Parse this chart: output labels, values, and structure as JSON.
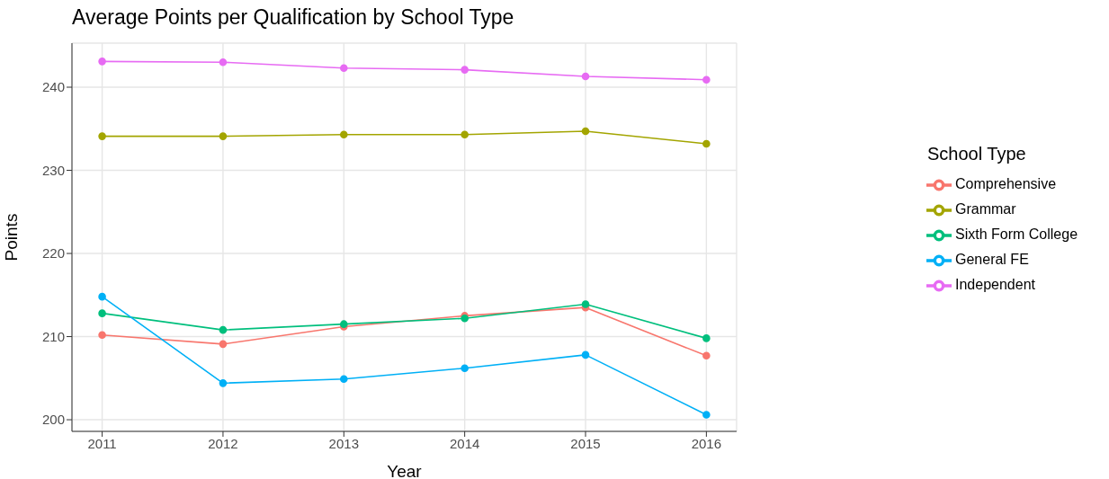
{
  "chart_data": {
    "type": "line",
    "title": "Average Points per Qualification by School Type",
    "xlabel": "Year",
    "ylabel": "Points",
    "legend_title": "School Type",
    "x": [
      2011,
      2012,
      2013,
      2014,
      2015,
      2016
    ],
    "xlim": [
      2010.75,
      2016.25
    ],
    "xticks": [
      2011,
      2012,
      2013,
      2014,
      2015,
      2016
    ],
    "ylim": [
      198.6,
      245.3
    ],
    "yticks": [
      200,
      210,
      220,
      230,
      240
    ],
    "grid": true,
    "legend": "right",
    "marker": "circle",
    "series": [
      {
        "name": "Comprehensive",
        "color": "#f8766d",
        "values": [
          210.2,
          209.1,
          211.2,
          212.5,
          213.5,
          207.7
        ]
      },
      {
        "name": "Grammar",
        "color": "#a3a500",
        "values": [
          234.1,
          234.1,
          234.3,
          234.3,
          234.7,
          233.2
        ]
      },
      {
        "name": "Sixth Form College",
        "color": "#00bf7d",
        "values": [
          212.8,
          210.8,
          211.5,
          212.2,
          213.9,
          209.8
        ]
      },
      {
        "name": "General FE",
        "color": "#00b0f6",
        "values": [
          214.8,
          204.4,
          204.9,
          206.2,
          207.8,
          200.6
        ]
      },
      {
        "name": "Independent",
        "color": "#e76bf3",
        "values": [
          243.1,
          243.0,
          242.3,
          242.1,
          241.3,
          240.9
        ]
      }
    ]
  }
}
